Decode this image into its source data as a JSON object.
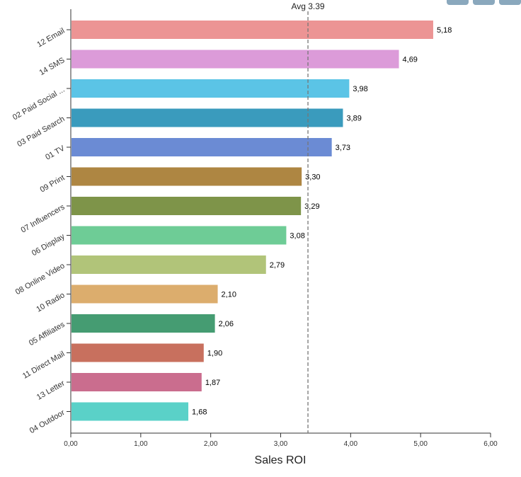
{
  "toolbar": {
    "buttons": [
      "download-button",
      "zoom-button",
      "menu-button"
    ]
  },
  "chart_data": {
    "type": "bar",
    "orientation": "horizontal",
    "categories": [
      "12 Email",
      "14 SMS",
      "02 Paid Social ...",
      "03 Paid Search",
      "01 TV",
      "09 Print",
      "07 Influencers",
      "06 Display",
      "08 Online Video",
      "10 Radio",
      "05 Affiliates",
      "11 Direct Mail",
      "13 Letter",
      "04 Outdoor"
    ],
    "values": [
      5.18,
      4.69,
      3.98,
      3.89,
      3.73,
      3.3,
      3.29,
      3.08,
      2.79,
      2.1,
      2.06,
      1.9,
      1.87,
      1.68
    ],
    "value_labels": [
      "5,18",
      "4,69",
      "3,98",
      "3,89",
      "3,73",
      "3,30",
      "3,29",
      "3,08",
      "2,79",
      "2,10",
      "2,06",
      "1,90",
      "1,87",
      "1,68"
    ],
    "colors": [
      "#ec9494",
      "#dc9bd9",
      "#5bc4e6",
      "#3a9bbd",
      "#6b8bd4",
      "#ae8642",
      "#7e9449",
      "#6ecc96",
      "#b1c479",
      "#dcad6d",
      "#459c72",
      "#c8705e",
      "#ca6d8e",
      "#5ad1c8"
    ],
    "xlabel": "Sales ROI",
    "xlim": [
      0,
      6
    ],
    "xticks": [
      0,
      1,
      2,
      3,
      4,
      5,
      6
    ],
    "xtick_labels": [
      "0,00",
      "1,00",
      "2,00",
      "3,00",
      "4,00",
      "5,00",
      "6,00"
    ],
    "average": {
      "value": 3.39,
      "label": "Avg 3.39"
    },
    "grid": false
  }
}
